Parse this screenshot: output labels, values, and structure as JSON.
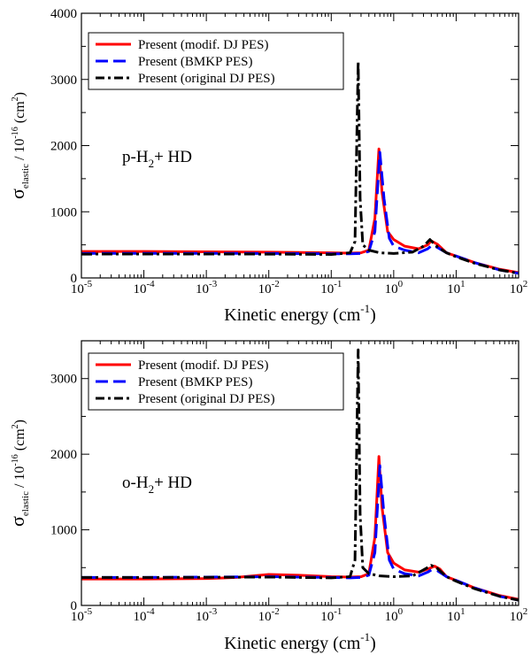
{
  "chart_data": [
    {
      "type": "line",
      "annotation": {
        "pre": "p-H",
        "sub": "2",
        "post": "+ HD"
      },
      "xscale": "log",
      "xlim": [
        1e-05,
        100
      ],
      "ylim": [
        0,
        4000
      ],
      "xticks": [
        {
          "base": "10",
          "exp": "-5"
        },
        {
          "base": "10",
          "exp": "-4"
        },
        {
          "base": "10",
          "exp": "-3"
        },
        {
          "base": "10",
          "exp": "-2"
        },
        {
          "base": "10",
          "exp": "-1"
        },
        {
          "base": "10",
          "exp": "0"
        },
        {
          "base": "10",
          "exp": "1"
        },
        {
          "base": "10",
          "exp": "2"
        }
      ],
      "yticks": [
        "0",
        "1000",
        "2000",
        "3000",
        "4000"
      ],
      "ytick_values": [
        0,
        1000,
        2000,
        3000,
        4000
      ],
      "xlabel": {
        "main": "Kinetic energy (cm",
        "sup": "-1",
        "end": ")"
      },
      "ylabel": {
        "sigma": "σ",
        "sub": "elastic",
        "mid": " / 10",
        "sup": "-16",
        "unit": " (cm",
        "sup2": "2",
        "end": ")"
      },
      "legend_position": "top-left",
      "series": [
        {
          "name": "Present (modif. DJ PES)",
          "color": "#ff0000",
          "style": "solid",
          "x": [
            1e-05,
            0.0001,
            0.001,
            0.01,
            0.1,
            0.2,
            0.3,
            0.4,
            0.5,
            0.58,
            0.65,
            0.8,
            1.0,
            1.5,
            2.5,
            3.5,
            4.0,
            5.0,
            7.0,
            10,
            20,
            50,
            100
          ],
          "y": [
            400,
            400,
            395,
            390,
            380,
            375,
            380,
            420,
            900,
            1950,
            1300,
            700,
            580,
            480,
            440,
            500,
            560,
            510,
            380,
            330,
            230,
            130,
            80
          ]
        },
        {
          "name": "Present (BMKP PES)",
          "color": "#0000ff",
          "style": "dash",
          "x": [
            1e-05,
            0.0001,
            0.001,
            0.01,
            0.1,
            0.2,
            0.3,
            0.4,
            0.5,
            0.6,
            0.7,
            0.85,
            1.0,
            1.5,
            2.5,
            3.5,
            4.2,
            5.0,
            7.0,
            10,
            20,
            50,
            100
          ],
          "y": [
            370,
            372,
            372,
            370,
            365,
            365,
            370,
            400,
            700,
            1900,
            1200,
            600,
            480,
            420,
            380,
            440,
            500,
            460,
            380,
            330,
            230,
            120,
            70
          ]
        },
        {
          "name": "Present (original DJ PES)",
          "color": "#000000",
          "style": "dashdot",
          "x": [
            1e-05,
            0.0001,
            0.001,
            0.01,
            0.1,
            0.2,
            0.24,
            0.27,
            0.29,
            0.32,
            0.4,
            0.6,
            1.0,
            2.0,
            3.0,
            3.8,
            5.0,
            7.0,
            10,
            20,
            50,
            100
          ],
          "y": [
            360,
            362,
            362,
            360,
            355,
            380,
            550,
            3270,
            1200,
            500,
            420,
            380,
            370,
            390,
            480,
            580,
            470,
            380,
            320,
            220,
            120,
            70
          ]
        }
      ]
    },
    {
      "type": "line",
      "annotation": {
        "pre": "o-H",
        "sub": "2",
        "post": "+ HD"
      },
      "xscale": "log",
      "xlim": [
        1e-05,
        100
      ],
      "ylim": [
        0,
        3500
      ],
      "xticks": [
        {
          "base": "10",
          "exp": "-5"
        },
        {
          "base": "10",
          "exp": "-4"
        },
        {
          "base": "10",
          "exp": "-3"
        },
        {
          "base": "10",
          "exp": "-2"
        },
        {
          "base": "10",
          "exp": "-1"
        },
        {
          "base": "10",
          "exp": "0"
        },
        {
          "base": "10",
          "exp": "1"
        },
        {
          "base": "10",
          "exp": "2"
        }
      ],
      "yticks": [
        "0",
        "1000",
        "2000",
        "3000"
      ],
      "ytick_values": [
        0,
        1000,
        2000,
        3000
      ],
      "xlabel": {
        "main": "Kinetic energy (cm",
        "sup": "-1",
        "end": ")"
      },
      "ylabel": {
        "sigma": "σ",
        "sub": "elastic",
        "mid": " / 10",
        "sup": "-16",
        "unit": " (cm",
        "sup2": "2",
        "end": ")"
      },
      "legend_position": "top-left",
      "series": [
        {
          "name": "Present (modif. DJ PES)",
          "color": "#ff0000",
          "style": "solid",
          "x": [
            1e-05,
            0.0001,
            0.001,
            0.003,
            0.01,
            0.03,
            0.1,
            0.2,
            0.3,
            0.4,
            0.5,
            0.58,
            0.65,
            0.8,
            1.0,
            1.5,
            2.5,
            3.5,
            4.5,
            5.5,
            7.0,
            10,
            20,
            50,
            100
          ],
          "y": [
            350,
            350,
            355,
            370,
            410,
            400,
            380,
            375,
            380,
            420,
            900,
            1970,
            1300,
            700,
            560,
            470,
            440,
            480,
            520,
            480,
            380,
            330,
            230,
            130,
            80
          ]
        },
        {
          "name": "Present (BMKP PES)",
          "color": "#0000ff",
          "style": "dash",
          "x": [
            1e-05,
            0.0001,
            0.001,
            0.01,
            0.1,
            0.2,
            0.3,
            0.4,
            0.5,
            0.6,
            0.7,
            0.85,
            1.0,
            1.5,
            2.5,
            3.5,
            4.2,
            5.0,
            7.0,
            10,
            20,
            50,
            100
          ],
          "y": [
            370,
            370,
            375,
            380,
            370,
            365,
            370,
            400,
            700,
            1850,
            1200,
            600,
            480,
            420,
            390,
            440,
            480,
            460,
            380,
            330,
            230,
            120,
            70
          ]
        },
        {
          "name": "Present (original DJ PES)",
          "color": "#000000",
          "style": "dashdot",
          "x": [
            1e-05,
            0.0001,
            0.001,
            0.01,
            0.1,
            0.2,
            0.24,
            0.27,
            0.29,
            0.32,
            0.4,
            0.6,
            1.0,
            2.0,
            3.0,
            4.0,
            5.0,
            7.0,
            10,
            20,
            50,
            100
          ],
          "y": [
            370,
            370,
            372,
            375,
            365,
            380,
            600,
            3380,
            1200,
            500,
            420,
            390,
            380,
            390,
            470,
            530,
            490,
            380,
            320,
            220,
            120,
            70
          ]
        }
      ]
    }
  ]
}
